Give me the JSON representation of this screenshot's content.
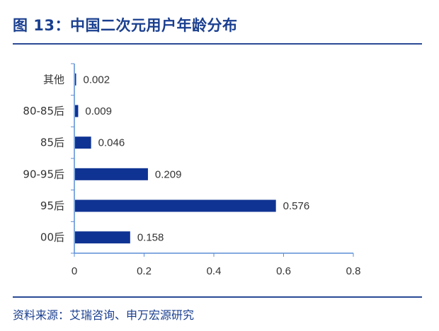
{
  "figure": {
    "title": "图 13：中国二次元用户年龄分布",
    "source": "资料来源：艾瑞咨询、申万宏源研究"
  },
  "chart_data": {
    "type": "bar",
    "orientation": "horizontal",
    "categories": [
      "其他",
      "80-85后",
      "85后",
      "90-95后",
      "95后",
      "00后"
    ],
    "values": [
      0.002,
      0.009,
      0.046,
      0.209,
      0.576,
      0.158
    ],
    "value_labels": [
      "0.002",
      "0.009",
      "0.046",
      "0.209",
      "0.576",
      "0.158"
    ],
    "xlim": [
      0,
      0.8
    ],
    "xticks": [
      0,
      0.2,
      0.4,
      0.6,
      0.8
    ],
    "xtick_labels": [
      "0",
      "0.2",
      "0.4",
      "0.6",
      "0.8"
    ],
    "title": "",
    "xlabel": "",
    "ylabel": "",
    "grid": false,
    "bar_color": "#0f3393"
  }
}
